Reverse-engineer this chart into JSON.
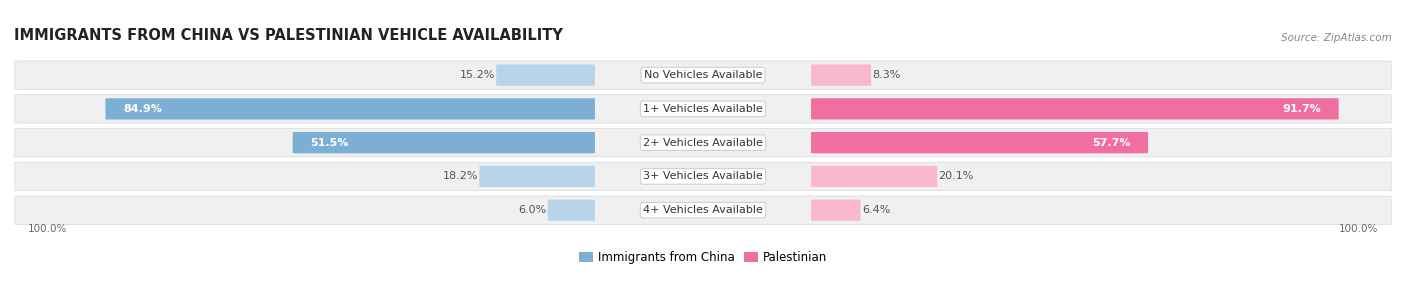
{
  "title": "IMMIGRANTS FROM CHINA VS PALESTINIAN VEHICLE AVAILABILITY",
  "source": "Source: ZipAtlas.com",
  "categories": [
    "No Vehicles Available",
    "1+ Vehicles Available",
    "2+ Vehicles Available",
    "3+ Vehicles Available",
    "4+ Vehicles Available"
  ],
  "china_values": [
    15.2,
    84.9,
    51.5,
    18.2,
    6.0
  ],
  "palestinian_values": [
    8.3,
    91.7,
    57.7,
    20.1,
    6.4
  ],
  "china_color_dark": "#7bafd4",
  "china_color_light": "#b8d4ea",
  "palestinian_color_dark": "#f06fa0",
  "palestinian_color_light": "#f9b8d0",
  "row_bg_color": "#f0f0f0",
  "row_edge_color": "#d8d8d8",
  "title_fontsize": 10.5,
  "label_fontsize": 8,
  "category_fontsize": 8,
  "legend_fontsize": 8.5,
  "axis_label_fontsize": 7.5,
  "label_threshold": 30
}
